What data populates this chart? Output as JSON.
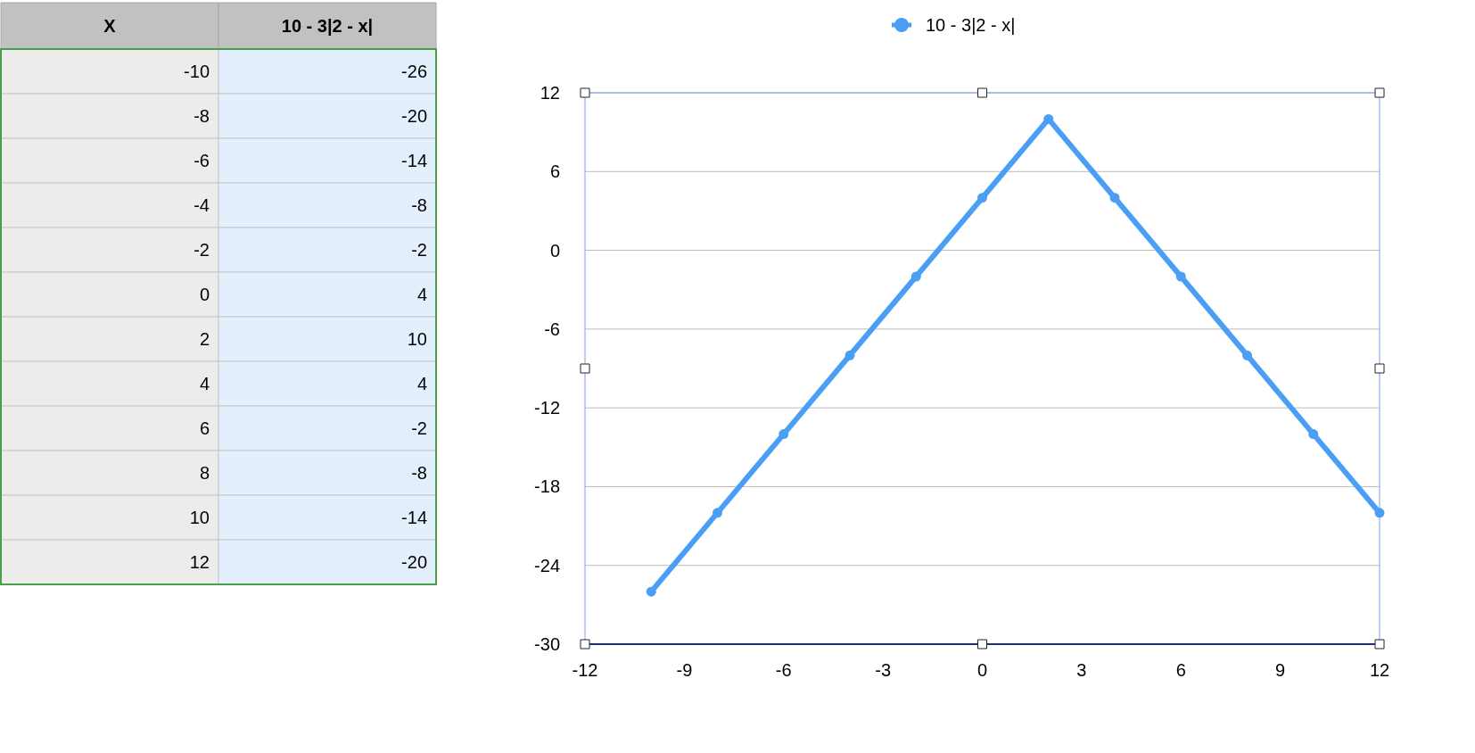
{
  "chart_data": [
    {
      "type": "heatmap",
      "categories": [
        "X",
        "10 - 3|2 - x|"
      ],
      "y_categories": [
        null,
        null,
        null,
        null,
        null,
        null,
        null,
        null,
        null,
        null,
        null,
        null
      ],
      "colors": [
        "#ececec",
        "#e3effd"
      ],
      "cells": [
        [
          -10,
          -26
        ],
        [
          -8,
          -20
        ],
        [
          -6,
          -14
        ],
        [
          -4,
          -8
        ],
        [
          -2,
          -2
        ],
        [
          0,
          4
        ],
        [
          2,
          10
        ],
        [
          4,
          4
        ],
        [
          6,
          -2
        ],
        [
          8,
          -8
        ],
        [
          10,
          -14
        ],
        [
          12,
          -20
        ]
      ],
      "data_labels": true
    },
    {
      "type": "line",
      "x": [
        -10,
        -8,
        -6,
        -4,
        -2,
        0,
        2,
        4,
        6,
        8,
        10,
        12
      ],
      "series": [
        {
          "name": "10 - 3|2 - x|",
          "color": "#4a9ff5",
          "values": [
            -26,
            -20,
            -14,
            -8,
            -2,
            4,
            10,
            4,
            -2,
            -8,
            -14,
            -20
          ]
        }
      ],
      "xlim": [
        -12,
        12
      ],
      "xticks": [
        -12,
        -9,
        -6,
        -3,
        0,
        3,
        6,
        9,
        12
      ],
      "ylim": [
        -30,
        12
      ],
      "yticks": [
        -30,
        -24,
        -18,
        -12,
        -6,
        0,
        6,
        12
      ],
      "grid": "y",
      "legend": "top",
      "marker": "circle",
      "line_style": "solid"
    }
  ]
}
